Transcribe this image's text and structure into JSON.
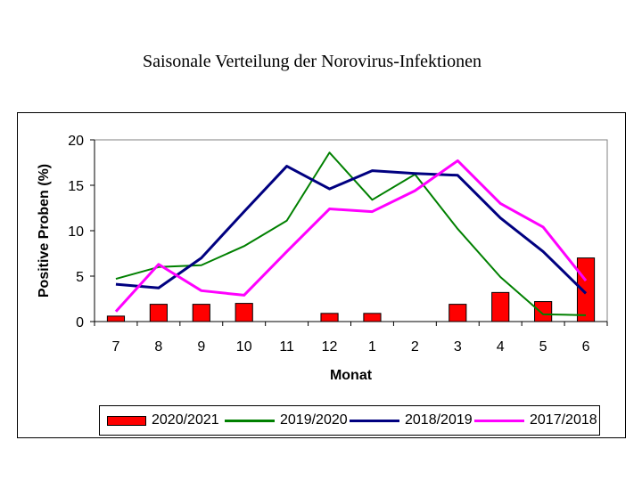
{
  "chart_data": {
    "type": "bar+line",
    "title": "Saisonale Verteilung der Norovirus-Infektionen",
    "xlabel": "Monat",
    "ylabel": "Positive Proben (%)",
    "categories": [
      "7",
      "8",
      "9",
      "10",
      "11",
      "12",
      "1",
      "2",
      "3",
      "4",
      "5",
      "6"
    ],
    "ylim": [
      0,
      20
    ],
    "yticks": [
      "0",
      "5",
      "10",
      "15",
      "20"
    ],
    "grid": false,
    "legend_position": "bottom",
    "series": [
      {
        "name": "2020/2021",
        "kind": "bar",
        "color": "#ff0000",
        "values": [
          0.6,
          1.9,
          1.9,
          2.0,
          0,
          0.9,
          0.9,
          0,
          1.9,
          3.2,
          2.2,
          7.0
        ]
      },
      {
        "name": "2019/2020",
        "kind": "line",
        "color": "#008000",
        "values": [
          4.7,
          6.0,
          6.2,
          8.3,
          11.1,
          18.6,
          13.4,
          16.2,
          10.2,
          4.9,
          0.8,
          0.7
        ]
      },
      {
        "name": "2018/2019",
        "kind": "line",
        "color": "#000080",
        "values": [
          4.1,
          3.7,
          7.0,
          12.1,
          17.1,
          14.6,
          16.6,
          16.3,
          16.1,
          11.4,
          7.7,
          3.1
        ]
      },
      {
        "name": "2017/2018",
        "kind": "line",
        "color": "#ff00ff",
        "values": [
          1.1,
          6.3,
          3.4,
          2.9,
          7.7,
          12.4,
          12.1,
          14.4,
          17.7,
          13.0,
          10.4,
          4.5
        ]
      }
    ]
  }
}
